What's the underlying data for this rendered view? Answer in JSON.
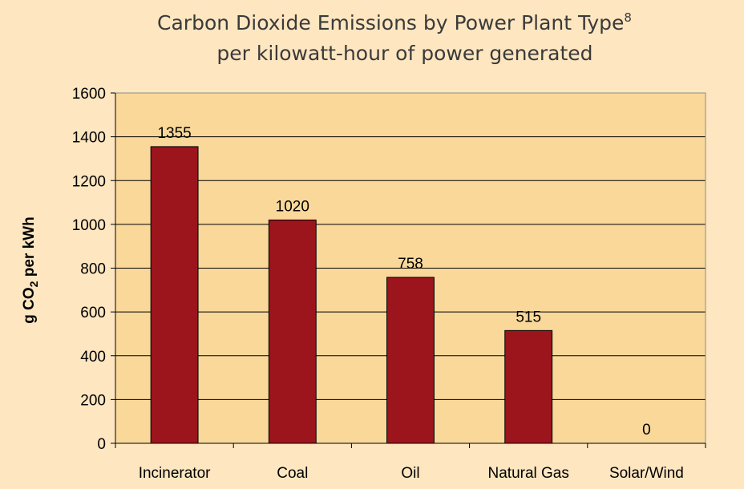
{
  "chart_data": {
    "type": "bar",
    "title": "Carbon Dioxide Emissions by Power Plant Type",
    "title_superscript": "8",
    "subtitle": "per kilowatt-hour of power generated",
    "ylabel_parts": {
      "before": "g CO",
      "subscript": "2",
      "after": " per kWh"
    },
    "xlabel": "",
    "categories": [
      "Incinerator",
      "Coal",
      "Oil",
      "Natural Gas",
      "Solar/Wind"
    ],
    "values": [
      1355,
      1020,
      758,
      515,
      0
    ],
    "data_labels": [
      "1355",
      "1020",
      "758",
      "515",
      "0"
    ],
    "ylim": [
      0,
      1600
    ],
    "yticks": [
      0,
      200,
      400,
      600,
      800,
      1000,
      1200,
      1400,
      1600
    ],
    "grid": true,
    "legend": "none",
    "colors": {
      "page_background": "#fde6c0",
      "plot_background": "#f9d89a",
      "bar_fill": "#9c141c",
      "bar_stroke": "#000000",
      "grid": "#000000",
      "title": "#3a3a3a"
    }
  }
}
